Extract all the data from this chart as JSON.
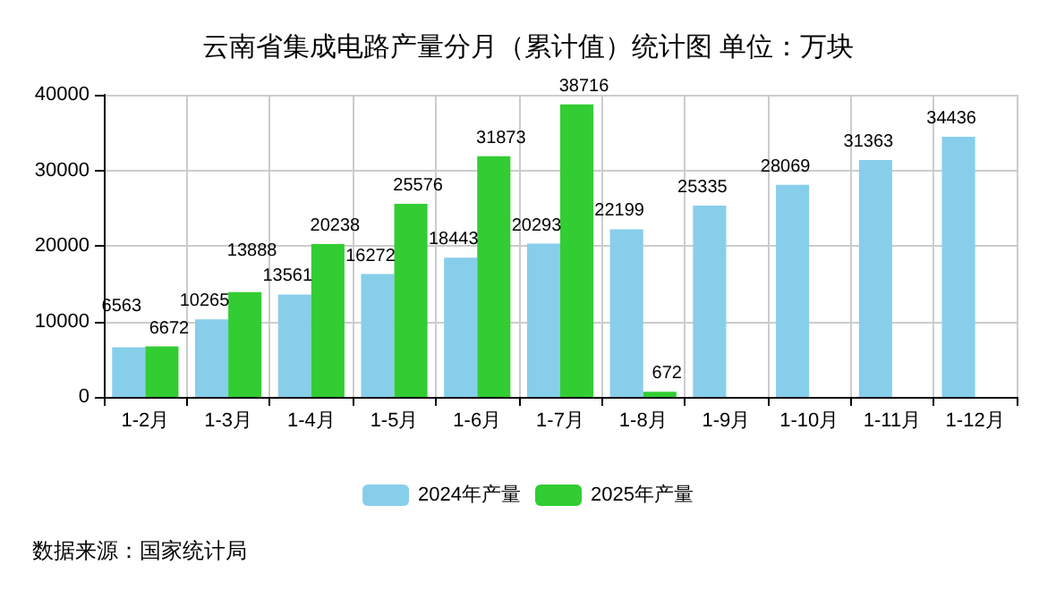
{
  "chart_data": {
    "type": "bar",
    "title": "云南省集成电路产量分月（累计值）统计图 单位：万块",
    "categories": [
      "1-2月",
      "1-3月",
      "1-4月",
      "1-5月",
      "1-6月",
      "1-7月",
      "1-8月",
      "1-9月",
      "1-10月",
      "1-11月",
      "1-12月"
    ],
    "series": [
      {
        "name": "2024年产量",
        "color": "#87ceeb",
        "values": [
          6563,
          10265,
          13561,
          16272,
          18443,
          20293,
          22199,
          25335,
          28069,
          31363,
          34436
        ]
      },
      {
        "name": "2025年产量",
        "color": "#32cd32",
        "values": [
          6672,
          13888,
          20238,
          25576,
          31873,
          38716,
          672,
          null,
          null,
          null,
          null
        ]
      }
    ],
    "ylim": [
      0,
      40000
    ],
    "yticks": [
      0,
      10000,
      20000,
      30000,
      40000
    ],
    "grid": true,
    "legend": "bottom",
    "data_labels": true,
    "annotations": [
      "数据来源：国家统计局"
    ]
  }
}
